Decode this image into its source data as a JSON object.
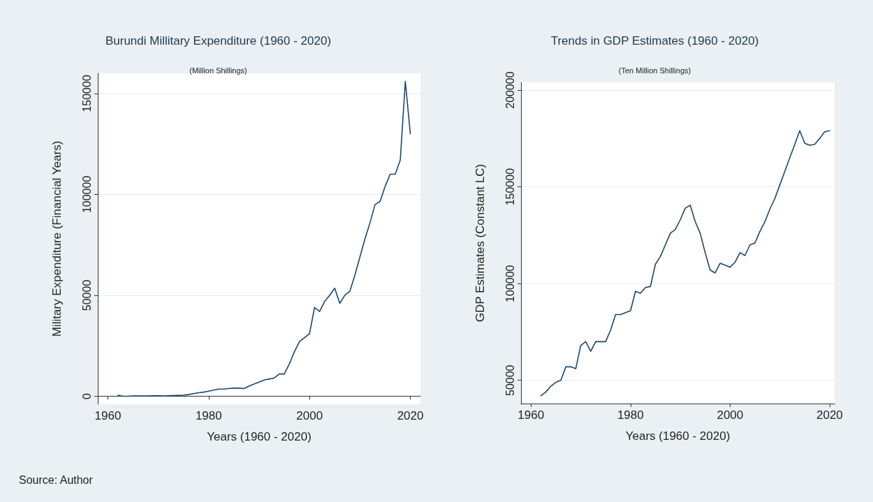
{
  "chart_data": [
    {
      "type": "line",
      "title": "Burundi Millitary Expenditure (1960 - 2020)",
      "subtitle": "(Million Shillings)",
      "xlabel": "Years (1960 - 2020)",
      "ylabel": "Military Expenditure (Financial Years)",
      "annotations": [
        "Source: Author"
      ],
      "x": [
        1962,
        1963,
        1964,
        1965,
        1966,
        1967,
        1968,
        1969,
        1970,
        1971,
        1972,
        1973,
        1974,
        1975,
        1976,
        1977,
        1978,
        1979,
        1980,
        1981,
        1982,
        1983,
        1984,
        1985,
        1986,
        1987,
        1988,
        1989,
        1990,
        1991,
        1992,
        1993,
        1994,
        1995,
        1996,
        1997,
        1998,
        1999,
        2000,
        2001,
        2002,
        2003,
        2004,
        2005,
        2006,
        2007,
        2008,
        2009,
        2010,
        2011,
        2012,
        2013,
        2014,
        2015,
        2016,
        2017,
        2018,
        2019,
        2020
      ],
      "series": [
        {
          "color": "#1a476f",
          "values": [
            500,
            0,
            0,
            100,
            100,
            100,
            100,
            200,
            200,
            100,
            200,
            300,
            400,
            500,
            800,
            1300,
            1700,
            2000,
            2500,
            3000,
            3500,
            3500,
            3800,
            4000,
            4000,
            3800,
            5000,
            6000,
            7000,
            8000,
            8500,
            9000,
            11000,
            11000,
            16000,
            22000,
            27000,
            29000,
            31000,
            44000,
            42000,
            47000,
            50000,
            53500,
            46000,
            50000,
            52000,
            60000,
            69000,
            78000,
            86000,
            95000,
            96500,
            104000,
            110000,
            110000,
            117000,
            156000,
            130000
          ]
        }
      ],
      "xlim": [
        1958,
        2022
      ],
      "xticks": [
        1960,
        1980,
        2000,
        2020
      ],
      "ylim": [
        -4000,
        160000
      ],
      "yticks": [
        0,
        50000,
        100000,
        150000
      ],
      "grid": "y",
      "marker": "none",
      "line_style": "solid"
    },
    {
      "type": "line",
      "title": "Trends in GDP Estimates (1960 - 2020)",
      "subtitle": "(Ten Million Shillings)",
      "xlabel": "Years (1960 - 2020)",
      "ylabel": "GDP Estimates (Constant LC)",
      "x": [
        1962,
        1963,
        1964,
        1965,
        1966,
        1967,
        1968,
        1969,
        1970,
        1971,
        1972,
        1973,
        1974,
        1975,
        1976,
        1977,
        1978,
        1979,
        1980,
        1981,
        1982,
        1983,
        1984,
        1985,
        1986,
        1987,
        1988,
        1989,
        1990,
        1991,
        1992,
        1993,
        1994,
        1995,
        1996,
        1997,
        1998,
        1999,
        2000,
        2001,
        2002,
        2003,
        2004,
        2005,
        2006,
        2007,
        2008,
        2009,
        2010,
        2011,
        2012,
        2013,
        2014,
        2015,
        2016,
        2017,
        2018,
        2019,
        2020
      ],
      "series": [
        {
          "color": "#1a476f",
          "values": [
            42000,
            44000,
            47000,
            49000,
            50000,
            57000,
            57000,
            56000,
            68000,
            70000,
            65000,
            70000,
            70000,
            70000,
            76000,
            84000,
            84000,
            85000,
            86000,
            96000,
            95000,
            98000,
            98500,
            110000,
            114000,
            120000,
            126000,
            128000,
            133000,
            139000,
            140500,
            132000,
            126000,
            116000,
            107000,
            105500,
            110500,
            109500,
            108500,
            111000,
            116000,
            114500,
            120000,
            121000,
            127000,
            132000,
            138500,
            144000,
            151000,
            158000,
            165000,
            172000,
            179000,
            172500,
            171500,
            172000,
            175000,
            178500,
            179000
          ]
        }
      ],
      "xlim": [
        1958,
        2021
      ],
      "xticks": [
        1960,
        1980,
        2000,
        2020
      ],
      "ylim": [
        38000,
        204000
      ],
      "yticks": [
        50000,
        100000,
        150000,
        200000
      ],
      "grid": "y",
      "marker": "none",
      "line_style": "solid"
    }
  ]
}
